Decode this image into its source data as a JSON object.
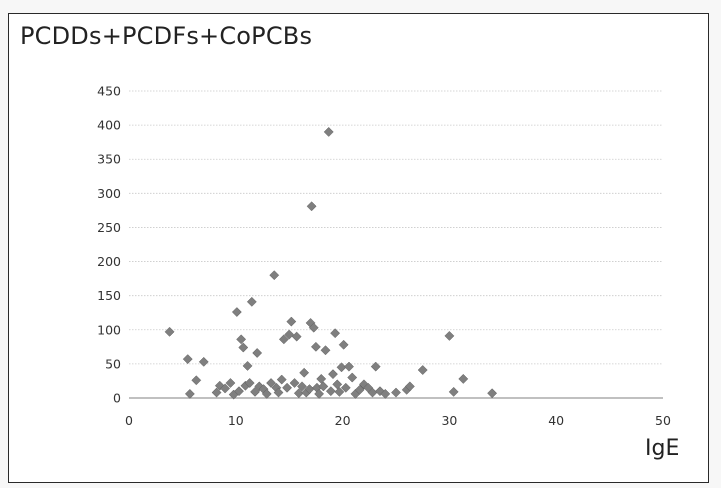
{
  "chart_data": {
    "type": "scatter",
    "title": "PCDDs+PCDFs+CoPCBs",
    "xlabel": "IgE",
    "ylabel": "",
    "xlim": [
      0,
      50
    ],
    "ylim": [
      0,
      450
    ],
    "xticks": [
      0,
      10,
      20,
      30,
      40,
      50
    ],
    "yticks": [
      0,
      50,
      100,
      150,
      200,
      250,
      300,
      350,
      400,
      450
    ],
    "grid": "horizontal",
    "legend": "none",
    "marker_color": "#7f7f7f",
    "marker": "diamond",
    "series": [
      {
        "points": [
          [
            3.8,
            97
          ],
          [
            5.5,
            57
          ],
          [
            5.7,
            6
          ],
          [
            6.3,
            26
          ],
          [
            7.0,
            53
          ],
          [
            8.2,
            8
          ],
          [
            8.5,
            18
          ],
          [
            9.0,
            14
          ],
          [
            9.5,
            22
          ],
          [
            9.8,
            5
          ],
          [
            10.1,
            126
          ],
          [
            10.3,
            10
          ],
          [
            10.5,
            86
          ],
          [
            10.7,
            74
          ],
          [
            10.9,
            18
          ],
          [
            11.1,
            47
          ],
          [
            11.3,
            22
          ],
          [
            11.5,
            141
          ],
          [
            11.8,
            9
          ],
          [
            12.0,
            66
          ],
          [
            12.2,
            17
          ],
          [
            12.6,
            13
          ],
          [
            12.9,
            6
          ],
          [
            13.3,
            22
          ],
          [
            13.6,
            180
          ],
          [
            13.8,
            15
          ],
          [
            14.0,
            8
          ],
          [
            14.3,
            27
          ],
          [
            14.5,
            86
          ],
          [
            14.8,
            15
          ],
          [
            15.0,
            93
          ],
          [
            15.2,
            112
          ],
          [
            15.5,
            22
          ],
          [
            15.7,
            90
          ],
          [
            15.9,
            7
          ],
          [
            16.2,
            17
          ],
          [
            16.4,
            37
          ],
          [
            16.6,
            8
          ],
          [
            16.9,
            13
          ],
          [
            17.0,
            110
          ],
          [
            17.1,
            281
          ],
          [
            17.3,
            103
          ],
          [
            17.5,
            75
          ],
          [
            17.6,
            15
          ],
          [
            17.8,
            6
          ],
          [
            18.0,
            28
          ],
          [
            18.2,
            17
          ],
          [
            18.4,
            70
          ],
          [
            18.7,
            390
          ],
          [
            18.9,
            10
          ],
          [
            19.1,
            35
          ],
          [
            19.3,
            95
          ],
          [
            19.5,
            20
          ],
          [
            19.7,
            9
          ],
          [
            19.9,
            45
          ],
          [
            20.1,
            78
          ],
          [
            20.3,
            15
          ],
          [
            20.6,
            46
          ],
          [
            20.9,
            30
          ],
          [
            21.2,
            6
          ],
          [
            21.6,
            12
          ],
          [
            22.0,
            20
          ],
          [
            22.4,
            15
          ],
          [
            22.8,
            8
          ],
          [
            23.1,
            46
          ],
          [
            23.5,
            10
          ],
          [
            24.0,
            6
          ],
          [
            25.0,
            8
          ],
          [
            26.0,
            12
          ],
          [
            26.3,
            17
          ],
          [
            27.5,
            41
          ],
          [
            30.0,
            91
          ],
          [
            30.4,
            9
          ],
          [
            31.3,
            28
          ],
          [
            34.0,
            7
          ]
        ]
      }
    ]
  }
}
